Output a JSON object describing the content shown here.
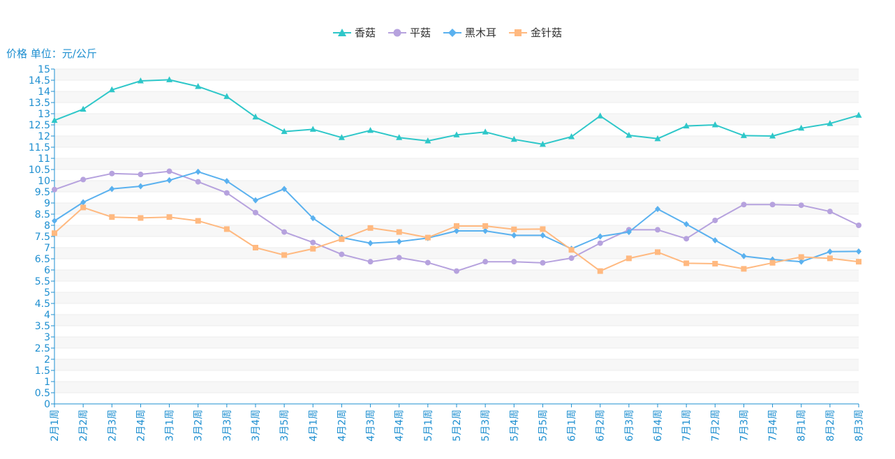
{
  "chart_data": {
    "type": "line",
    "ylabel": "价格 单位：元/公斤",
    "ylim": [
      0,
      15
    ],
    "ytick_step": 0.5,
    "categories": [
      "2月1周",
      "2月2周",
      "2月3周",
      "2月4周",
      "3月1周",
      "3月2周",
      "3月3周",
      "3月4周",
      "3月5周",
      "4月1周",
      "4月2周",
      "4月3周",
      "4月4周",
      "5月1周",
      "5月2周",
      "5月3周",
      "5月4周",
      "5月5周",
      "6月1周",
      "6月2周",
      "6月3周",
      "6月4周",
      "7月1周",
      "7月2周",
      "7月3周",
      "7月4周",
      "8月1周",
      "8月2周",
      "8月3周"
    ],
    "legend_position": "top-center",
    "grid": true,
    "series": [
      {
        "name": "香菇",
        "color": "#2ec7c9",
        "marker": "triangle",
        "values": [
          12.7,
          13.2,
          14.07,
          14.47,
          14.52,
          14.22,
          13.77,
          12.85,
          12.2,
          12.3,
          11.93,
          12.25,
          11.93,
          11.78,
          12.05,
          12.18,
          11.85,
          11.63,
          11.97,
          12.9,
          12.03,
          11.88,
          12.45,
          12.5,
          12.02,
          12.0,
          12.35,
          12.56,
          12.93
        ]
      },
      {
        "name": "平菇",
        "color": "#b6a2de",
        "marker": "circle",
        "values": [
          9.6,
          10.05,
          10.32,
          10.28,
          10.42,
          9.95,
          9.45,
          8.57,
          7.7,
          7.23,
          6.7,
          6.37,
          6.55,
          6.33,
          5.95,
          6.37,
          6.37,
          6.32,
          6.53,
          7.2,
          7.8,
          7.8,
          7.4,
          8.22,
          8.93,
          8.93,
          8.9,
          8.62,
          8.0
        ]
      },
      {
        "name": "黑木耳",
        "color": "#5ab1ef",
        "marker": "diamond",
        "values": [
          8.2,
          9.03,
          9.63,
          9.75,
          10.02,
          10.4,
          9.98,
          9.12,
          9.63,
          8.32,
          7.45,
          7.2,
          7.27,
          7.43,
          7.75,
          7.75,
          7.55,
          7.55,
          6.95,
          7.5,
          7.7,
          8.73,
          8.05,
          7.33,
          6.62,
          6.47,
          6.37,
          6.82,
          6.83
        ]
      },
      {
        "name": "金针菇",
        "color": "#ffb980",
        "marker": "square",
        "values": [
          7.65,
          8.8,
          8.37,
          8.33,
          8.37,
          8.2,
          7.83,
          7.0,
          6.67,
          6.95,
          7.38,
          7.88,
          7.7,
          7.45,
          7.97,
          7.97,
          7.82,
          7.83,
          6.9,
          5.95,
          6.52,
          6.8,
          6.3,
          6.28,
          6.05,
          6.32,
          6.58,
          6.52,
          6.37
        ]
      }
    ]
  }
}
